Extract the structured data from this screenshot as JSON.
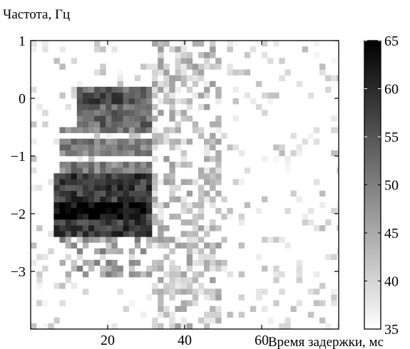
{
  "chart_data": {
    "type": "heatmap",
    "title": "",
    "ylabel": "Частота, Гц",
    "xlabel": "Время задержки, мс",
    "xlim": [
      0,
      80
    ],
    "ylim": [
      -4,
      1
    ],
    "x_ticks": [
      20,
      40,
      60
    ],
    "y_ticks": [
      1,
      0,
      -1,
      -2,
      -3
    ],
    "x_tick_labels": [
      "20",
      "40",
      "60"
    ],
    "y_tick_labels": [
      "1",
      "0",
      "−1",
      "−2",
      "−3"
    ],
    "colorbar": {
      "min": 35,
      "max": 65,
      "ticks": [
        65,
        60,
        55,
        50,
        45,
        40,
        35
      ],
      "tick_labels": [
        "65",
        "60",
        "55",
        "50",
        "45",
        "40",
        "35"
      ]
    },
    "grid": false,
    "cell_width_ms": 1.5,
    "cell_height_hz": 0.1,
    "regions": [
      {
        "x": [
          6,
          31
        ],
        "y": [
          -2.4,
          -1.25
        ],
        "level": 58
      },
      {
        "x": [
          8,
          31
        ],
        "y": [
          -1.25,
          -0.45
        ],
        "level": 50
      },
      {
        "x": [
          12,
          31
        ],
        "y": [
          -0.45,
          0.25
        ],
        "level": 53
      },
      {
        "x": [
          8,
          31
        ],
        "y": [
          -3.1,
          -2.4
        ],
        "level": 44
      },
      {
        "x": [
          31,
          50
        ],
        "y": [
          -4,
          1
        ],
        "level": 40
      },
      {
        "x": [
          50,
          80
        ],
        "y": [
          -4,
          1
        ],
        "level": 36.5
      },
      {
        "x": [
          2,
          12
        ],
        "y": [
          -4,
          1
        ],
        "level": 36
      }
    ],
    "peaks": [
      {
        "x": [
          6,
          30
        ],
        "y": [
          -2.05,
          -1.75
        ],
        "level": 64
      },
      {
        "x": [
          14,
          26
        ],
        "y": [
          -0.05,
          0.15
        ],
        "level": 57
      }
    ],
    "light_bands": [
      {
        "x": [
          8,
          31
        ],
        "y": [
          -0.72,
          -0.62
        ]
      },
      {
        "x": [
          8,
          31
        ],
        "y": [
          -1.12,
          -1.02
        ]
      },
      {
        "x": [
          8,
          31
        ],
        "y": [
          -2.82,
          -2.72
        ]
      }
    ]
  }
}
